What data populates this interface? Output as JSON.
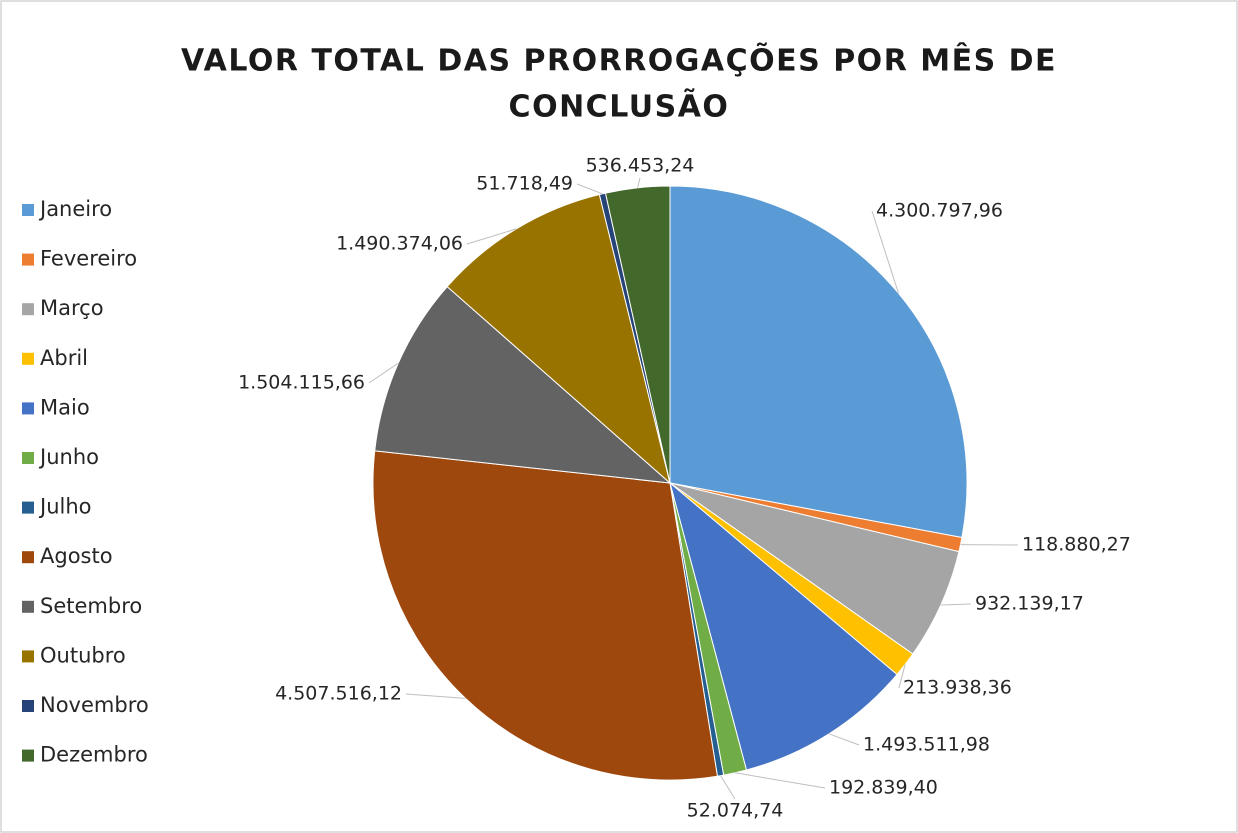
{
  "chart_data": {
    "type": "pie",
    "title": "VALOR TOTAL DAS PRORROGAÇÕES POR MÊS DE CONCLUSÃO",
    "title_lines": [
      "VALOR TOTAL DAS PRORROGAÇÕES POR MÊS DE",
      "CONCLUSÃO"
    ],
    "categories": [
      "Janeiro",
      "Fevereiro",
      "Março",
      "Abril",
      "Maio",
      "Junho",
      "Julho",
      "Agosto",
      "Setembro",
      "Outubro",
      "Novembro",
      "Dezembro"
    ],
    "values": [
      4300797.96,
      118880.27,
      932139.17,
      213938.36,
      1493511.98,
      192839.4,
      52074.74,
      4507516.12,
      1504115.66,
      1490374.06,
      51718.49,
      536453.24
    ],
    "value_labels": [
      "4.300.797,96",
      "118.880,27",
      "932.139,17",
      "213.938,36",
      "1.493.511,98",
      "192.839,40",
      "52.074,74",
      "4.507.516,12",
      "1.504.115,66",
      "1.490.374,06",
      "51.718,49",
      "536.453,24"
    ],
    "colors": [
      "#5b9bd5",
      "#ed7d31",
      "#a5a5a5",
      "#ffc000",
      "#4472c4",
      "#70ad47",
      "#255e91",
      "#9e480e",
      "#636363",
      "#997300",
      "#264478",
      "#43682b"
    ],
    "legend": "left"
  }
}
